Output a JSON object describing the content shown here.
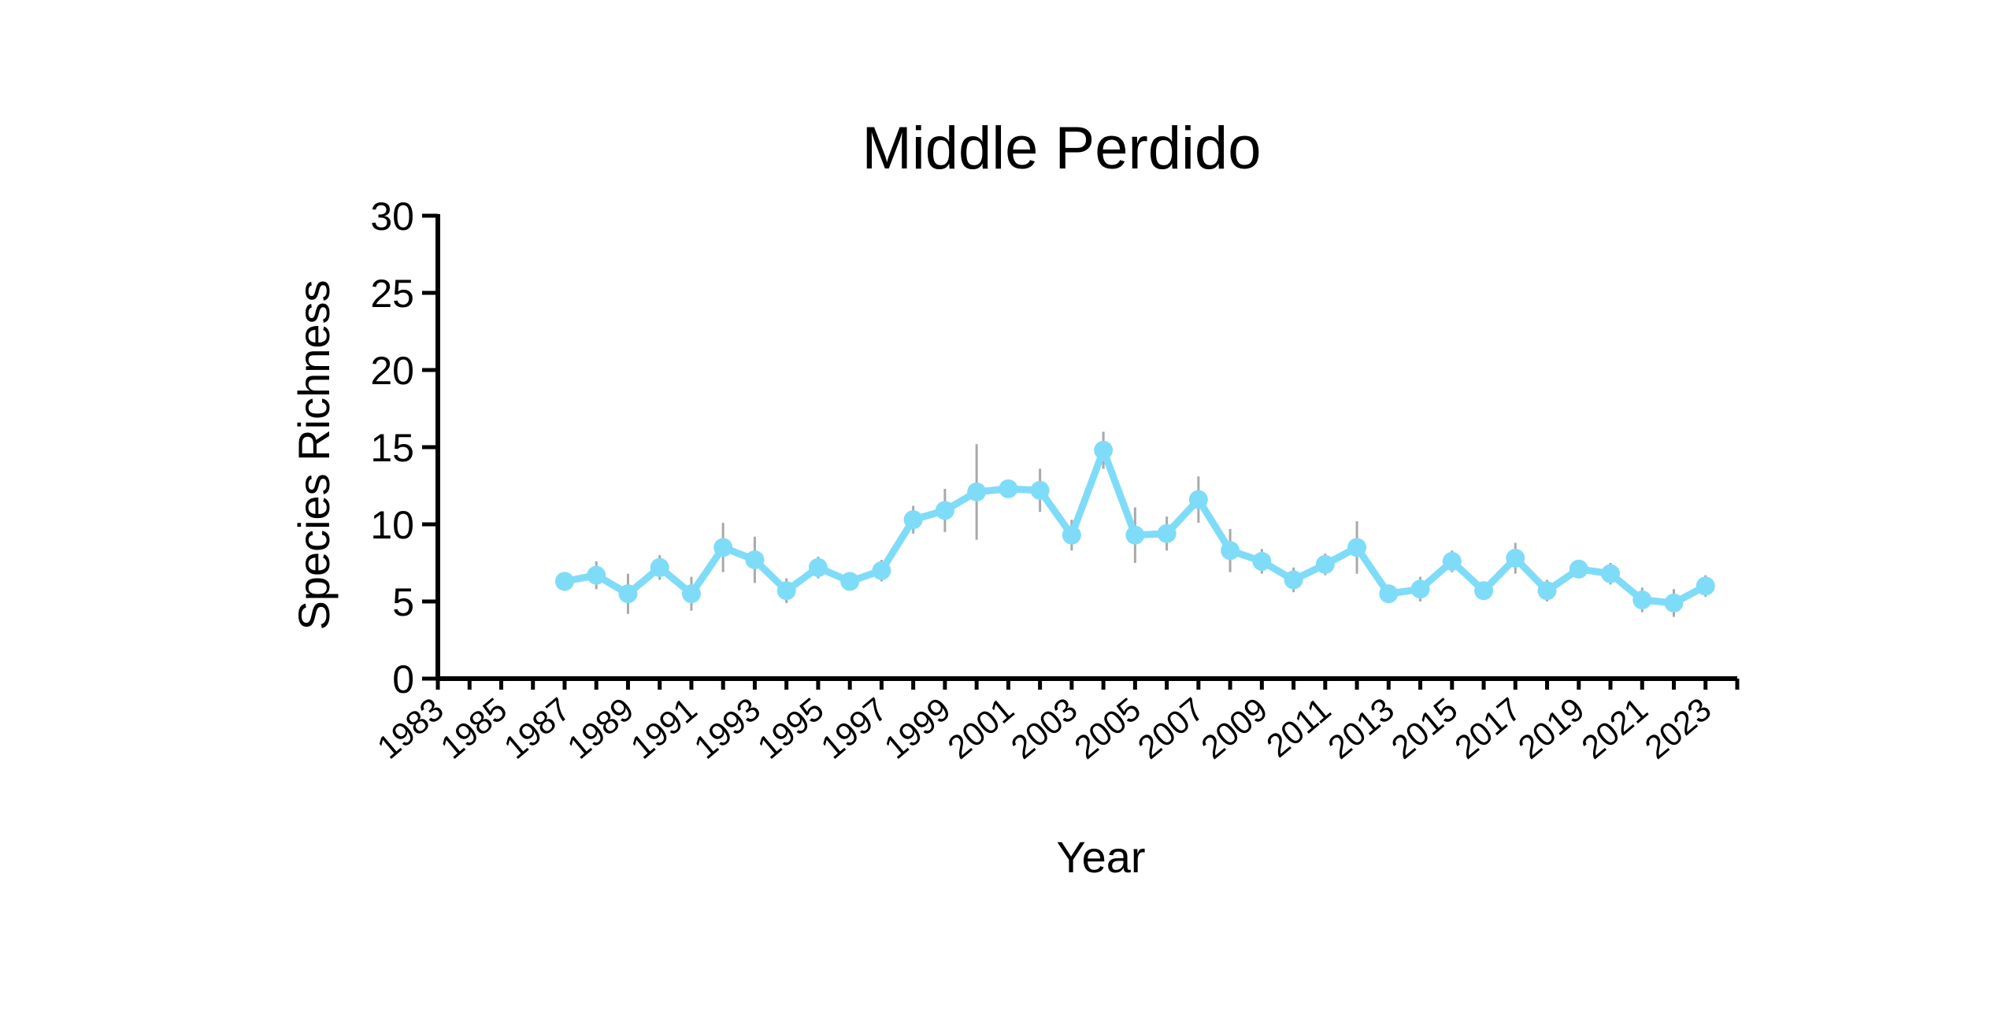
{
  "colors": {
    "series": "#7fdcf8",
    "error_bar": "#a9a9a9",
    "axis": "#000000",
    "background": "#ffffff"
  },
  "chart_data": {
    "type": "line",
    "title": "Middle Perdido",
    "xlabel": "Year",
    "ylabel": "Species Richness",
    "xlim": [
      1983,
      2024
    ],
    "ylim": [
      0,
      30
    ],
    "yticks": [
      0,
      5,
      10,
      15,
      20,
      25,
      30
    ],
    "xtick_labels": [
      "1983",
      "1985",
      "1987",
      "1989",
      "1991",
      "1993",
      "1995",
      "1997",
      "1999",
      "2001",
      "2003",
      "2005",
      "2007",
      "2009",
      "2011",
      "2013",
      "2015",
      "2017",
      "2019",
      "2021",
      "2023"
    ],
    "grid": false,
    "legend": "none",
    "error_bars": true,
    "series": [
      {
        "x": [
          1987,
          1988,
          1989,
          1990,
          1991,
          1992,
          1993,
          1994,
          1995,
          1996,
          1997,
          1998,
          1999,
          2000,
          2001,
          2002,
          2003,
          2004,
          2005,
          2006,
          2007,
          2008,
          2009,
          2010,
          2011,
          2012,
          2013,
          2014,
          2015,
          2016,
          2017,
          2018,
          2019,
          2020,
          2021,
          2022,
          2023
        ],
        "values": [
          6.3,
          6.7,
          5.5,
          7.2,
          5.5,
          8.5,
          7.7,
          5.7,
          7.2,
          6.3,
          7.0,
          10.3,
          10.9,
          12.1,
          12.3,
          12.2,
          9.3,
          14.8,
          9.3,
          9.4,
          11.6,
          8.3,
          7.6,
          6.4,
          7.4,
          8.5,
          5.5,
          5.8,
          7.6,
          5.7,
          7.8,
          5.7,
          7.1,
          6.8,
          5.1,
          4.9,
          6.0
        ],
        "errors": [
          0.6,
          0.9,
          1.3,
          0.8,
          1.1,
          1.6,
          1.5,
          0.8,
          0.7,
          0.5,
          0.7,
          0.9,
          1.4,
          3.1,
          0.5,
          1.4,
          1.0,
          1.2,
          1.8,
          1.1,
          1.5,
          1.4,
          0.8,
          0.8,
          0.7,
          1.7,
          0.6,
          0.8,
          0.7,
          0.4,
          1.0,
          0.7,
          0.6,
          0.7,
          0.8,
          0.9,
          0.7
        ]
      }
    ]
  }
}
